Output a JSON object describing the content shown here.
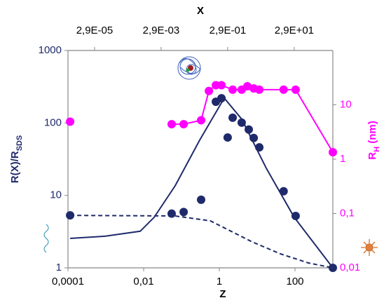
{
  "chart_data": {
    "type": "line",
    "log_x": true,
    "log_y": true,
    "x_label": "Z",
    "x2_label": "X",
    "y_label": {
      "main": "R(X)/R",
      "sub": "SDS"
    },
    "y2_label": {
      "main": "R",
      "sub": "H",
      "rest": " (nm)"
    },
    "xlim": [
      0.0001,
      1000
    ],
    "xticks": [
      {
        "value": 0.0001,
        "label": "0,0001"
      },
      {
        "value": 0.01,
        "label": "0,01"
      },
      1,
      100
    ],
    "x2lim": [
      4.6e-06,
      420
    ],
    "x2ticks": [
      {
        "value": 2.9e-05,
        "label": "2,9E-05"
      },
      {
        "value": 0.0029,
        "label": "2,9E-03"
      },
      {
        "value": 0.29,
        "label": "2,9E-01"
      },
      {
        "value": 29,
        "label": "2,9E+01"
      }
    ],
    "ylim": [
      1,
      1000
    ],
    "yticks": [
      1,
      10,
      100,
      1000
    ],
    "y2lim": [
      0.01,
      100
    ],
    "y2ticks": [
      {
        "value": 0.01,
        "label": "0,01"
      },
      {
        "value": 0.1,
        "label": "0,1"
      },
      1,
      10
    ],
    "axis_color": "#1f2a6b",
    "axis2_color": "#ff00ff",
    "series": [
      {
        "color": "#1f2a6b",
        "line": "solid",
        "marker": false,
        "x": [
          0.000114,
          0.00096,
          0.0081,
          0.019,
          0.068,
          0.3,
          1.35,
          3.9,
          17.4,
          95,
          1000
        ],
        "values": [
          2.55,
          2.73,
          3.2,
          5.0,
          13.6,
          57.6,
          220,
          113,
          23.7,
          5.0,
          1
        ]
      },
      {
        "color": "#1f2a6b",
        "line": "dashed",
        "marker": false,
        "x": [
          0.000114,
          0.068,
          0.58,
          2.04,
          7.4,
          41,
          225,
          1000
        ],
        "values": [
          5.3,
          5.2,
          4.45,
          3.2,
          2.28,
          1.56,
          1.17,
          1
        ]
      },
      {
        "color": "#1f2a6b",
        "line": "none",
        "marker": true,
        "x": [
          0.000114,
          0.055,
          0.114,
          0.33,
          1.66,
          0.81,
          1.14,
          2.25,
          3.9,
          6.0,
          8.1,
          11.4,
          50,
          104,
          1000
        ],
        "values": [
          5.3,
          5.6,
          5.9,
          8.7,
          63,
          196,
          219,
          118,
          101,
          81,
          62,
          46,
          11.4,
          5.2,
          1
        ]
      },
      {
        "color": "#ff00ff",
        "line": "none",
        "marker": true,
        "axis": "y2",
        "x": [
          0.000114
        ],
        "values": [
          4.9
        ]
      },
      {
        "color": "#ff00ff",
        "line": "solid",
        "marker": true,
        "axis": "y2",
        "x": [
          0.055,
          0.114,
          0.33,
          0.53,
          0.81,
          1.14,
          2.25,
          3.9,
          5.5,
          8.1,
          11.4,
          50,
          104,
          1000
        ],
        "values": [
          4.4,
          4.4,
          5.2,
          18,
          23,
          23,
          19,
          19,
          22,
          20,
          19,
          19,
          19,
          1.34
        ]
      }
    ]
  }
}
